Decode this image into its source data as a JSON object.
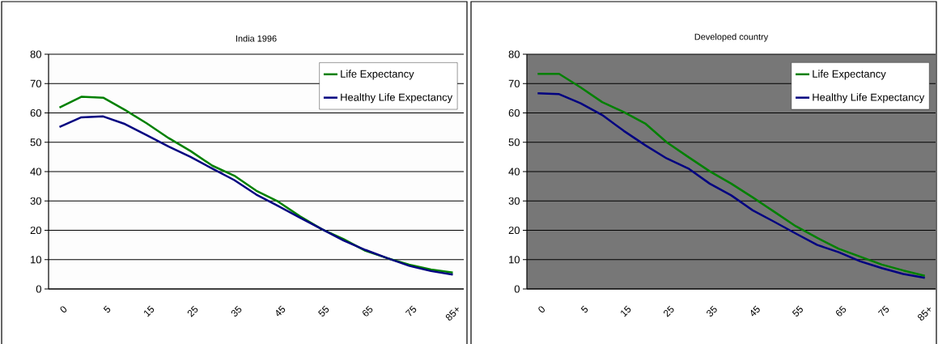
{
  "chart_data": [
    {
      "type": "line",
      "title": "India 1996",
      "categories": [
        "0",
        null,
        "5",
        null,
        "15",
        null,
        "25",
        null,
        "35",
        null,
        "45",
        null,
        "55",
        null,
        "65",
        null,
        "75",
        null,
        "85+"
      ],
      "series": [
        {
          "name": "Life Expectancy",
          "color": "#008000",
          "values": [
            61.8,
            65.5,
            65.2,
            61,
            56.4,
            51.4,
            47,
            42,
            38.6,
            33.5,
            29.8,
            24.8,
            20.4,
            17,
            13,
            10.5,
            8.3,
            6.6,
            5.6
          ]
        },
        {
          "name": "Healthy Life Expectancy",
          "color": "#000080",
          "values": [
            55.2,
            58.5,
            58.8,
            56.2,
            52.4,
            48.5,
            45,
            41,
            37.1,
            32.2,
            28.3,
            24.3,
            20.4,
            16.5,
            13.3,
            10.5,
            7.9,
            6.1,
            4.9
          ]
        }
      ],
      "ylim": [
        0,
        80
      ],
      "yticks": [
        0,
        10,
        20,
        30,
        40,
        50,
        60,
        70,
        80
      ],
      "grid": "y",
      "legend": "top right"
    },
    {
      "type": "line",
      "title": "Developed country",
      "categories": [
        "0",
        null,
        "5",
        null,
        "15",
        null,
        "25",
        null,
        "35",
        null,
        "45",
        null,
        "55",
        null,
        "65",
        null,
        "75",
        null,
        "85+"
      ],
      "series": [
        {
          "name": "Life Expectancy",
          "color": "#008000",
          "values": [
            73.3,
            73.3,
            68.7,
            63.7,
            60.3,
            56.4,
            50,
            45,
            40.1,
            35.9,
            31.2,
            26.3,
            21.4,
            17.4,
            13.7,
            11,
            8.3,
            6.3,
            4.5
          ]
        },
        {
          "name": "Healthy Life Expectancy",
          "color": "#000080",
          "values": [
            66.7,
            66.4,
            63.3,
            59.3,
            53.9,
            49,
            44.5,
            41.1,
            35.9,
            31.9,
            26.8,
            22.9,
            18.9,
            15,
            12.5,
            9.4,
            7.1,
            5.1,
            3.8
          ]
        }
      ],
      "ylim": [
        0,
        80
      ],
      "yticks": [
        0,
        10,
        20,
        30,
        40,
        50,
        60,
        70,
        80
      ],
      "grid": "y",
      "legend": "top right"
    }
  ]
}
